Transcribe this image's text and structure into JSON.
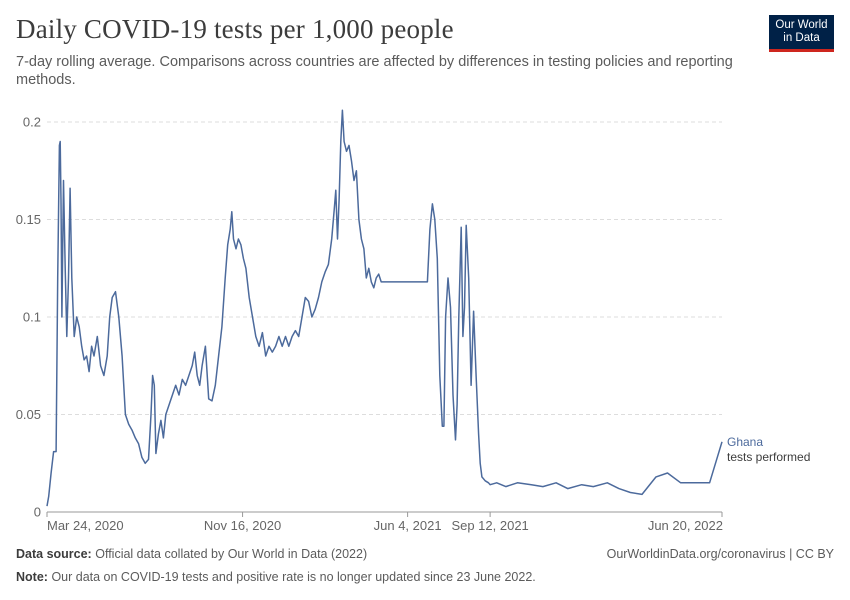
{
  "header": {
    "title": "Daily COVID-19 tests per 1,000 people",
    "subtitle": "7-day rolling average. Comparisons across countries are affected by differences in testing policies and reporting methods.",
    "logo_line1": "Our World",
    "logo_line2": "in Data"
  },
  "footer": {
    "source_label": "Data source:",
    "source_text": "Official data collated by Our World in Data (2022)",
    "note_label": "Note:",
    "note_text": "Our data on COVID-19 tests and positive rate is no longer updated since 23 June 2022.",
    "link_text": "OurWorldinData.org/coronavirus | CC BY"
  },
  "colors": {
    "line": "#4c6a9c",
    "grid": "#dddddd",
    "axis": "#999999",
    "text": "#666666"
  },
  "chart_data": {
    "type": "line",
    "title": "Daily COVID-19 tests per 1,000 people",
    "xlabel": "",
    "ylabel": "",
    "ylim": [
      0,
      0.2
    ],
    "yticks": [
      0,
      0.05,
      0.1,
      0.15,
      0.2
    ],
    "ytick_labels": [
      "0",
      "0.05",
      "0.1",
      "0.15",
      "0.2"
    ],
    "x_domain": [
      "2020-03-24",
      "2022-06-20"
    ],
    "xticks": [
      {
        "date": "2020-03-24",
        "label": "Mar 24, 2020"
      },
      {
        "date": "2020-11-16",
        "label": "Nov 16, 2020"
      },
      {
        "date": "2021-06-04",
        "label": "Jun 4, 2021"
      },
      {
        "date": "2021-09-12",
        "label": "Sep 12, 2021"
      },
      {
        "date": "2022-06-20",
        "label": "Jun 20, 2022"
      }
    ],
    "grid": true,
    "series": [
      {
        "name": "Ghana",
        "sublabel": "tests performed",
        "points": [
          [
            "2020-03-24",
            0.003
          ],
          [
            "2020-03-26",
            0.008
          ],
          [
            "2020-03-29",
            0.02
          ],
          [
            "2020-04-01",
            0.031
          ],
          [
            "2020-04-04",
            0.031
          ],
          [
            "2020-04-06",
            0.12
          ],
          [
            "2020-04-08",
            0.188
          ],
          [
            "2020-04-09",
            0.19
          ],
          [
            "2020-04-10",
            0.16
          ],
          [
            "2020-04-11",
            0.1
          ],
          [
            "2020-04-13",
            0.17
          ],
          [
            "2020-04-15",
            0.125
          ],
          [
            "2020-04-17",
            0.09
          ],
          [
            "2020-04-19",
            0.12
          ],
          [
            "2020-04-21",
            0.166
          ],
          [
            "2020-04-23",
            0.12
          ],
          [
            "2020-04-26",
            0.09
          ],
          [
            "2020-04-29",
            0.1
          ],
          [
            "2020-05-02",
            0.095
          ],
          [
            "2020-05-05",
            0.085
          ],
          [
            "2020-05-08",
            0.078
          ],
          [
            "2020-05-11",
            0.08
          ],
          [
            "2020-05-14",
            0.072
          ],
          [
            "2020-05-17",
            0.085
          ],
          [
            "2020-05-20",
            0.08
          ],
          [
            "2020-05-24",
            0.09
          ],
          [
            "2020-05-28",
            0.075
          ],
          [
            "2020-06-01",
            0.07
          ],
          [
            "2020-06-05",
            0.08
          ],
          [
            "2020-06-08",
            0.1
          ],
          [
            "2020-06-11",
            0.11
          ],
          [
            "2020-06-15",
            0.113
          ],
          [
            "2020-06-19",
            0.1
          ],
          [
            "2020-06-23",
            0.08
          ],
          [
            "2020-06-27",
            0.05
          ],
          [
            "2020-07-01",
            0.045
          ],
          [
            "2020-07-05",
            0.042
          ],
          [
            "2020-07-09",
            0.038
          ],
          [
            "2020-07-13",
            0.035
          ],
          [
            "2020-07-17",
            0.028
          ],
          [
            "2020-07-21",
            0.025
          ],
          [
            "2020-07-25",
            0.027
          ],
          [
            "2020-07-28",
            0.05
          ],
          [
            "2020-07-30",
            0.07
          ],
          [
            "2020-08-01",
            0.065
          ],
          [
            "2020-08-03",
            0.03
          ],
          [
            "2020-08-06",
            0.04
          ],
          [
            "2020-08-09",
            0.047
          ],
          [
            "2020-08-12",
            0.038
          ],
          [
            "2020-08-15",
            0.05
          ],
          [
            "2020-08-19",
            0.055
          ],
          [
            "2020-08-23",
            0.06
          ],
          [
            "2020-08-27",
            0.065
          ],
          [
            "2020-08-31",
            0.06
          ],
          [
            "2020-09-04",
            0.068
          ],
          [
            "2020-09-08",
            0.065
          ],
          [
            "2020-09-12",
            0.07
          ],
          [
            "2020-09-16",
            0.075
          ],
          [
            "2020-09-19",
            0.082
          ],
          [
            "2020-09-22",
            0.07
          ],
          [
            "2020-09-25",
            0.065
          ],
          [
            "2020-09-28",
            0.075
          ],
          [
            "2020-10-02",
            0.085
          ],
          [
            "2020-10-06",
            0.058
          ],
          [
            "2020-10-10",
            0.057
          ],
          [
            "2020-10-14",
            0.065
          ],
          [
            "2020-10-18",
            0.08
          ],
          [
            "2020-10-22",
            0.095
          ],
          [
            "2020-10-26",
            0.12
          ],
          [
            "2020-10-29",
            0.137
          ],
          [
            "2020-11-01",
            0.145
          ],
          [
            "2020-11-03",
            0.154
          ],
          [
            "2020-11-05",
            0.14
          ],
          [
            "2020-11-08",
            0.135
          ],
          [
            "2020-11-11",
            0.14
          ],
          [
            "2020-11-14",
            0.137
          ],
          [
            "2020-11-17",
            0.13
          ],
          [
            "2020-11-20",
            0.125
          ],
          [
            "2020-11-24",
            0.11
          ],
          [
            "2020-11-28",
            0.1
          ],
          [
            "2020-12-02",
            0.09
          ],
          [
            "2020-12-06",
            0.085
          ],
          [
            "2020-12-10",
            0.092
          ],
          [
            "2020-12-14",
            0.08
          ],
          [
            "2020-12-18",
            0.085
          ],
          [
            "2020-12-22",
            0.082
          ],
          [
            "2020-12-26",
            0.085
          ],
          [
            "2020-12-30",
            0.09
          ],
          [
            "2021-01-03",
            0.085
          ],
          [
            "2021-01-07",
            0.09
          ],
          [
            "2021-01-11",
            0.085
          ],
          [
            "2021-01-15",
            0.09
          ],
          [
            "2021-01-19",
            0.093
          ],
          [
            "2021-01-23",
            0.09
          ],
          [
            "2021-01-27",
            0.1
          ],
          [
            "2021-01-31",
            0.11
          ],
          [
            "2021-02-04",
            0.108
          ],
          [
            "2021-02-08",
            0.1
          ],
          [
            "2021-02-12",
            0.104
          ],
          [
            "2021-02-16",
            0.11
          ],
          [
            "2021-02-20",
            0.118
          ],
          [
            "2021-02-24",
            0.123
          ],
          [
            "2021-02-28",
            0.127
          ],
          [
            "2021-03-04",
            0.14
          ],
          [
            "2021-03-07",
            0.155
          ],
          [
            "2021-03-09",
            0.165
          ],
          [
            "2021-03-11",
            0.14
          ],
          [
            "2021-03-13",
            0.16
          ],
          [
            "2021-03-15",
            0.19
          ],
          [
            "2021-03-17",
            0.206
          ],
          [
            "2021-03-19",
            0.19
          ],
          [
            "2021-03-22",
            0.185
          ],
          [
            "2021-03-25",
            0.188
          ],
          [
            "2021-03-28",
            0.18
          ],
          [
            "2021-03-31",
            0.17
          ],
          [
            "2021-04-03",
            0.175
          ],
          [
            "2021-04-06",
            0.15
          ],
          [
            "2021-04-09",
            0.14
          ],
          [
            "2021-04-12",
            0.135
          ],
          [
            "2021-04-15",
            0.12
          ],
          [
            "2021-04-18",
            0.125
          ],
          [
            "2021-04-21",
            0.118
          ],
          [
            "2021-04-24",
            0.115
          ],
          [
            "2021-04-27",
            0.12
          ],
          [
            "2021-04-30",
            0.122
          ],
          [
            "2021-05-03",
            0.118
          ],
          [
            "2021-05-06",
            0.118
          ],
          [
            "2021-06-28",
            0.118
          ],
          [
            "2021-07-01",
            0.145
          ],
          [
            "2021-07-04",
            0.158
          ],
          [
            "2021-07-07",
            0.15
          ],
          [
            "2021-07-10",
            0.13
          ],
          [
            "2021-07-13",
            0.07
          ],
          [
            "2021-07-16",
            0.044
          ],
          [
            "2021-07-18",
            0.044
          ],
          [
            "2021-07-20",
            0.1
          ],
          [
            "2021-07-23",
            0.12
          ],
          [
            "2021-07-26",
            0.105
          ],
          [
            "2021-07-29",
            0.06
          ],
          [
            "2021-08-01",
            0.037
          ],
          [
            "2021-08-03",
            0.055
          ],
          [
            "2021-08-05",
            0.1
          ],
          [
            "2021-08-08",
            0.146
          ],
          [
            "2021-08-10",
            0.09
          ],
          [
            "2021-08-12",
            0.105
          ],
          [
            "2021-08-14",
            0.147
          ],
          [
            "2021-08-17",
            0.12
          ],
          [
            "2021-08-20",
            0.065
          ],
          [
            "2021-08-23",
            0.103
          ],
          [
            "2021-08-26",
            0.07
          ],
          [
            "2021-08-29",
            0.04
          ],
          [
            "2021-08-31",
            0.025
          ],
          [
            "2021-09-02",
            0.018
          ],
          [
            "2021-09-06",
            0.016
          ],
          [
            "2021-09-10",
            0.015
          ],
          [
            "2021-09-12",
            0.014
          ],
          [
            "2021-09-20",
            0.015
          ],
          [
            "2021-10-01",
            0.013
          ],
          [
            "2021-10-15",
            0.015
          ],
          [
            "2021-11-01",
            0.014
          ],
          [
            "2021-11-15",
            0.013
          ],
          [
            "2021-12-01",
            0.015
          ],
          [
            "2021-12-15",
            0.012
          ],
          [
            "2022-01-01",
            0.014
          ],
          [
            "2022-01-15",
            0.013
          ],
          [
            "2022-02-01",
            0.015
          ],
          [
            "2022-02-15",
            0.012
          ],
          [
            "2022-03-01",
            0.01
          ],
          [
            "2022-03-15",
            0.009
          ],
          [
            "2022-04-01",
            0.018
          ],
          [
            "2022-04-15",
            0.02
          ],
          [
            "2022-05-01",
            0.015
          ],
          [
            "2022-05-20",
            0.015
          ],
          [
            "2022-06-05",
            0.015
          ],
          [
            "2022-06-20",
            0.036
          ]
        ]
      }
    ]
  }
}
